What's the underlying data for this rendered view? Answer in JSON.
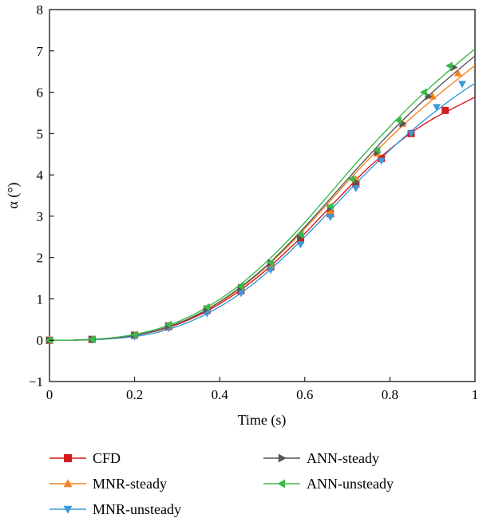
{
  "chart_data": {
    "type": "line",
    "title": "",
    "xlabel": "Time (s)",
    "ylabel": "α (°)",
    "xlim": [
      0,
      1
    ],
    "ylim": [
      -1,
      8
    ],
    "xticks": [
      0,
      0.2,
      0.4,
      0.6,
      0.8,
      1
    ],
    "xtick_labels": [
      "0",
      "0.2",
      "0.4",
      "0.6",
      "0.8",
      "1"
    ],
    "yticks": [
      -1,
      0,
      1,
      2,
      3,
      4,
      5,
      6,
      7,
      8
    ],
    "ytick_labels": [
      "−1",
      "0",
      "1",
      "2",
      "3",
      "4",
      "5",
      "6",
      "7",
      "8"
    ],
    "grid": false,
    "legend_position": "bottom",
    "series": [
      {
        "name": "CFD",
        "color": "#d7191c",
        "marker": "square",
        "x": [
          0,
          0.05,
          0.1,
          0.15,
          0.2,
          0.25,
          0.3,
          0.35,
          0.4,
          0.45,
          0.5,
          0.55,
          0.6,
          0.65,
          0.7,
          0.75,
          0.8,
          0.85,
          0.9,
          0.95,
          1.0
        ],
        "y": [
          0,
          0,
          0.02,
          0.05,
          0.12,
          0.22,
          0.38,
          0.6,
          0.88,
          1.22,
          1.62,
          2.08,
          2.58,
          3.12,
          3.66,
          4.18,
          4.62,
          5.02,
          5.35,
          5.62,
          5.88
        ],
        "marker_x": [
          0,
          0.1,
          0.2,
          0.28,
          0.37,
          0.45,
          0.52,
          0.59,
          0.66,
          0.72,
          0.78,
          0.85,
          0.93
        ],
        "marker_y": [
          0,
          0.02,
          0.12,
          0.33,
          0.72,
          1.2,
          1.77,
          2.43,
          3.06,
          3.78,
          4.4,
          5.0,
          5.56
        ]
      },
      {
        "name": "MNR-steady",
        "color": "#f58220",
        "marker": "triangle-up",
        "x": [
          0,
          0.05,
          0.1,
          0.15,
          0.2,
          0.25,
          0.3,
          0.35,
          0.4,
          0.45,
          0.5,
          0.55,
          0.6,
          0.65,
          0.7,
          0.75,
          0.8,
          0.85,
          0.9,
          0.95,
          1.0
        ],
        "y": [
          0,
          0,
          0.02,
          0.05,
          0.12,
          0.23,
          0.4,
          0.63,
          0.92,
          1.27,
          1.69,
          2.17,
          2.7,
          3.26,
          3.83,
          4.38,
          4.9,
          5.38,
          5.82,
          6.24,
          6.65
        ],
        "marker_x": [
          0,
          0.1,
          0.2,
          0.28,
          0.37,
          0.45,
          0.52,
          0.59,
          0.66,
          0.72,
          0.77,
          0.83,
          0.9,
          0.96
        ],
        "marker_y": [
          0,
          0.02,
          0.12,
          0.35,
          0.76,
          1.25,
          1.84,
          2.54,
          3.13,
          3.89,
          4.52,
          5.24,
          5.9,
          6.46
        ]
      },
      {
        "name": "MNR-unsteady",
        "color": "#3a9ad9",
        "marker": "triangle-down",
        "x": [
          0,
          0.05,
          0.1,
          0.15,
          0.2,
          0.25,
          0.3,
          0.35,
          0.4,
          0.45,
          0.5,
          0.55,
          0.6,
          0.65,
          0.7,
          0.75,
          0.8,
          0.85,
          0.9,
          0.95,
          1.0
        ],
        "y": [
          0,
          0,
          0.01,
          0.04,
          0.09,
          0.18,
          0.33,
          0.54,
          0.81,
          1.14,
          1.54,
          2.0,
          2.5,
          3.03,
          3.58,
          4.1,
          4.6,
          5.06,
          5.48,
          5.87,
          6.22
        ],
        "marker_x": [
          0,
          0.1,
          0.2,
          0.28,
          0.37,
          0.45,
          0.52,
          0.59,
          0.66,
          0.72,
          0.78,
          0.85,
          0.91,
          0.97
        ],
        "marker_y": [
          0,
          0.01,
          0.09,
          0.29,
          0.65,
          1.14,
          1.7,
          2.32,
          2.98,
          3.68,
          4.34,
          5.0,
          5.64,
          6.2
        ]
      },
      {
        "name": "ANN-steady",
        "color": "#555555",
        "marker": "triangle-right",
        "x": [
          0,
          0.05,
          0.1,
          0.15,
          0.2,
          0.25,
          0.3,
          0.35,
          0.4,
          0.45,
          0.5,
          0.55,
          0.6,
          0.65,
          0.7,
          0.75,
          0.8,
          0.85,
          0.9,
          0.95,
          1.0
        ],
        "y": [
          0,
          0,
          0.02,
          0.05,
          0.12,
          0.23,
          0.4,
          0.63,
          0.93,
          1.29,
          1.71,
          2.2,
          2.74,
          3.31,
          3.89,
          4.46,
          5.01,
          5.52,
          6.0,
          6.45,
          6.88
        ],
        "marker_x": [
          0,
          0.1,
          0.2,
          0.28,
          0.37,
          0.45,
          0.52,
          0.59,
          0.66,
          0.72,
          0.77,
          0.83,
          0.89,
          0.95
        ],
        "marker_y": [
          0,
          0.02,
          0.12,
          0.35,
          0.76,
          1.27,
          1.87,
          2.5,
          3.2,
          3.82,
          4.55,
          5.24,
          5.9,
          6.6
        ]
      },
      {
        "name": "ANN-unsteady",
        "color": "#3cb94a",
        "marker": "triangle-left",
        "x": [
          0,
          0.05,
          0.1,
          0.15,
          0.2,
          0.25,
          0.3,
          0.35,
          0.4,
          0.45,
          0.5,
          0.55,
          0.6,
          0.65,
          0.7,
          0.75,
          0.8,
          0.85,
          0.9,
          0.95,
          1.0
        ],
        "y": [
          0,
          0,
          0.02,
          0.06,
          0.14,
          0.26,
          0.44,
          0.68,
          0.99,
          1.36,
          1.8,
          2.3,
          2.85,
          3.44,
          4.04,
          4.62,
          5.17,
          5.69,
          6.17,
          6.62,
          7.05
        ],
        "marker_x": [
          0,
          0.1,
          0.2,
          0.28,
          0.37,
          0.45,
          0.52,
          0.59,
          0.66,
          0.71,
          0.77,
          0.82,
          0.88,
          0.94
        ],
        "marker_y": [
          0,
          0.02,
          0.13,
          0.38,
          0.8,
          1.3,
          1.88,
          2.56,
          3.24,
          3.9,
          4.6,
          5.32,
          6.0,
          6.64
        ]
      }
    ]
  }
}
